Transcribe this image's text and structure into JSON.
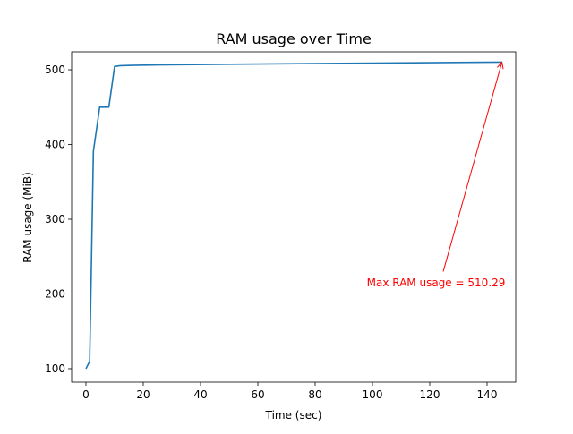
{
  "chart_data": {
    "type": "line",
    "title": "RAM usage over Time",
    "xlabel": "Time (sec)",
    "ylabel": "RAM usage (MiB)",
    "xlim": [
      -5,
      150
    ],
    "ylim": [
      82,
      524
    ],
    "x_ticks": [
      0,
      20,
      40,
      60,
      80,
      100,
      120,
      140
    ],
    "y_ticks": [
      100,
      200,
      300,
      400,
      500
    ],
    "grid": false,
    "series": [
      {
        "color": "#1f77b4",
        "x": [
          0,
          1.3,
          2.6,
          4.8,
          8.0,
          10.0,
          12.0,
          16.0,
          25.0,
          50.0,
          100.0,
          145.2
        ],
        "y": [
          100,
          110,
          391,
          450,
          450,
          504.5,
          505.5,
          506.0,
          506.5,
          507.5,
          509.0,
          510.29
        ]
      }
    ],
    "annotation": {
      "text": "Max RAM usage = 510.29",
      "color": "#ff0000",
      "point": [
        145.2,
        510.29
      ],
      "text_anchor_point": [
        124.7,
        230
      ]
    }
  }
}
